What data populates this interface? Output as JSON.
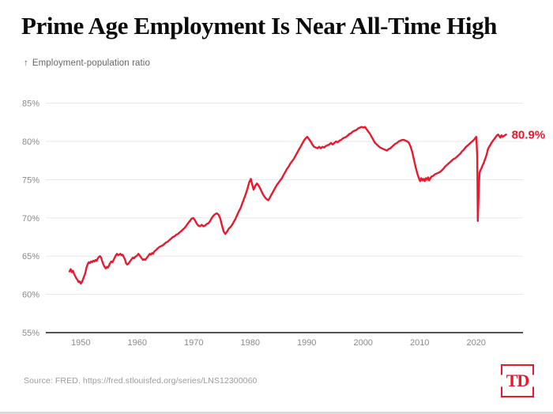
{
  "chart_data": {
    "type": "line",
    "title": "Prime Age Employment Is Near All-Time High",
    "ylabel": "Employment-population ratio",
    "ylabel_arrow": "↑",
    "end_label": "80.9%",
    "x_ticks": [
      1950,
      1960,
      1970,
      1980,
      1990,
      2000,
      2010,
      2020
    ],
    "y_ticks": [
      55,
      60,
      65,
      70,
      75,
      80,
      85
    ],
    "y_tick_suffix": "%",
    "xlim": [
      1943.8,
      2028.3
    ],
    "ylim": [
      55,
      85
    ],
    "grid": "horizontal",
    "legend": "none",
    "line_color": "#e8192d",
    "axis_color": "#3c3c3c",
    "grid_color": "#e7e7e7",
    "tick_label_color": "#8a8a8a",
    "series": [
      {
        "name": "Employment-population ratio",
        "points": [
          [
            1948,
            63
          ],
          [
            1948.2,
            63.3
          ],
          [
            1948.4,
            62.9
          ],
          [
            1948.6,
            63.1
          ],
          [
            1948.8,
            62.7
          ],
          [
            1949,
            62.4
          ],
          [
            1949.2,
            62.1
          ],
          [
            1949.4,
            61.9
          ],
          [
            1949.6,
            61.6
          ],
          [
            1949.8,
            61.7
          ],
          [
            1950,
            61.4
          ],
          [
            1950.2,
            61.6
          ],
          [
            1950.4,
            62
          ],
          [
            1950.6,
            62.4
          ],
          [
            1950.8,
            62.8
          ],
          [
            1951,
            63.5
          ],
          [
            1951.2,
            63.9
          ],
          [
            1951.4,
            64.2
          ],
          [
            1951.6,
            64.1
          ],
          [
            1951.8,
            64.3
          ],
          [
            1952,
            64.2
          ],
          [
            1952.2,
            64.4
          ],
          [
            1952.4,
            64.3
          ],
          [
            1952.6,
            64.5
          ],
          [
            1952.8,
            64.4
          ],
          [
            1953,
            64.7
          ],
          [
            1953.2,
            64.9
          ],
          [
            1953.4,
            65
          ],
          [
            1953.6,
            64.8
          ],
          [
            1953.8,
            64.3
          ],
          [
            1954,
            63.9
          ],
          [
            1954.2,
            63.6
          ],
          [
            1954.4,
            63.4
          ],
          [
            1954.6,
            63.6
          ],
          [
            1954.8,
            63.5
          ],
          [
            1955,
            63.8
          ],
          [
            1955.2,
            64.1
          ],
          [
            1955.4,
            64.3
          ],
          [
            1955.6,
            64.2
          ],
          [
            1955.8,
            64.5
          ],
          [
            1956,
            64.8
          ],
          [
            1956.2,
            65.1
          ],
          [
            1956.4,
            65.3
          ],
          [
            1956.6,
            65.1
          ],
          [
            1956.8,
            65.2
          ],
          [
            1957,
            65.3
          ],
          [
            1957.2,
            65.1
          ],
          [
            1957.4,
            65.2
          ],
          [
            1957.6,
            64.9
          ],
          [
            1957.8,
            64.6
          ],
          [
            1958,
            64.1
          ],
          [
            1958.2,
            63.9
          ],
          [
            1958.4,
            64
          ],
          [
            1958.6,
            64.2
          ],
          [
            1958.8,
            64.4
          ],
          [
            1959,
            64.6
          ],
          [
            1959.2,
            64.8
          ],
          [
            1959.4,
            64.7
          ],
          [
            1959.6,
            64.9
          ],
          [
            1959.8,
            65
          ],
          [
            1960,
            65.1
          ],
          [
            1960.2,
            65.3
          ],
          [
            1960.4,
            65.1
          ],
          [
            1960.6,
            64.9
          ],
          [
            1960.8,
            64.7
          ],
          [
            1961,
            64.5
          ],
          [
            1961.2,
            64.6
          ],
          [
            1961.4,
            64.5
          ],
          [
            1961.6,
            64.7
          ],
          [
            1961.8,
            64.9
          ],
          [
            1962,
            65.1
          ],
          [
            1962.2,
            65.3
          ],
          [
            1962.4,
            65.2
          ],
          [
            1962.6,
            65.4
          ],
          [
            1962.8,
            65.3
          ],
          [
            1963,
            65.6
          ],
          [
            1963.3,
            65.8
          ],
          [
            1963.6,
            66
          ],
          [
            1963.9,
            66.2
          ],
          [
            1964.2,
            66.3
          ],
          [
            1964.5,
            66.4
          ],
          [
            1964.8,
            66.6
          ],
          [
            1965.1,
            66.8
          ],
          [
            1965.4,
            66.9
          ],
          [
            1965.7,
            67.1
          ],
          [
            1966,
            67.3
          ],
          [
            1966.3,
            67.5
          ],
          [
            1966.6,
            67.6
          ],
          [
            1966.9,
            67.8
          ],
          [
            1967.2,
            67.9
          ],
          [
            1967.5,
            68.1
          ],
          [
            1967.8,
            68.3
          ],
          [
            1968.1,
            68.5
          ],
          [
            1968.4,
            68.7
          ],
          [
            1968.7,
            69
          ],
          [
            1969,
            69.3
          ],
          [
            1969.3,
            69.6
          ],
          [
            1969.6,
            69.9
          ],
          [
            1969.9,
            70
          ],
          [
            1970.2,
            69.7
          ],
          [
            1970.5,
            69.3
          ],
          [
            1970.8,
            69
          ],
          [
            1971.1,
            68.9
          ],
          [
            1971.4,
            69.1
          ],
          [
            1971.7,
            68.9
          ],
          [
            1972,
            69
          ],
          [
            1972.3,
            69.2
          ],
          [
            1972.6,
            69.3
          ],
          [
            1972.9,
            69.6
          ],
          [
            1973.2,
            70
          ],
          [
            1973.5,
            70.3
          ],
          [
            1973.8,
            70.5
          ],
          [
            1974.1,
            70.6
          ],
          [
            1974.4,
            70.4
          ],
          [
            1974.7,
            69.9
          ],
          [
            1975,
            69
          ],
          [
            1975.3,
            68.2
          ],
          [
            1975.6,
            67.9
          ],
          [
            1975.9,
            68.2
          ],
          [
            1976.2,
            68.6
          ],
          [
            1976.5,
            68.8
          ],
          [
            1976.8,
            69.1
          ],
          [
            1977.1,
            69.5
          ],
          [
            1977.4,
            69.9
          ],
          [
            1977.7,
            70.4
          ],
          [
            1978,
            70.9
          ],
          [
            1978.3,
            71.3
          ],
          [
            1978.6,
            71.9
          ],
          [
            1978.9,
            72.5
          ],
          [
            1979.2,
            73.1
          ],
          [
            1979.5,
            73.8
          ],
          [
            1979.8,
            74.6
          ],
          [
            1980.1,
            75.1
          ],
          [
            1980.4,
            74.2
          ],
          [
            1980.6,
            73.7
          ],
          [
            1980.9,
            74.2
          ],
          [
            1981.2,
            74.5
          ],
          [
            1981.5,
            74.2
          ],
          [
            1981.8,
            73.8
          ],
          [
            1982.1,
            73.3
          ],
          [
            1982.4,
            72.9
          ],
          [
            1982.7,
            72.6
          ],
          [
            1983,
            72.4
          ],
          [
            1983.2,
            72.3
          ],
          [
            1983.5,
            72.7
          ],
          [
            1983.8,
            73.1
          ],
          [
            1984.1,
            73.5
          ],
          [
            1984.4,
            73.9
          ],
          [
            1984.7,
            74.3
          ],
          [
            1985,
            74.6
          ],
          [
            1985.3,
            74.9
          ],
          [
            1985.6,
            75.2
          ],
          [
            1985.9,
            75.6
          ],
          [
            1986.2,
            76
          ],
          [
            1986.5,
            76.4
          ],
          [
            1986.8,
            76.7
          ],
          [
            1987.1,
            77.1
          ],
          [
            1987.4,
            77.4
          ],
          [
            1987.7,
            77.7
          ],
          [
            1988,
            78.1
          ],
          [
            1988.3,
            78.5
          ],
          [
            1988.6,
            78.9
          ],
          [
            1988.9,
            79.3
          ],
          [
            1989.2,
            79.7
          ],
          [
            1989.5,
            80.1
          ],
          [
            1989.8,
            80.4
          ],
          [
            1990.1,
            80.6
          ],
          [
            1990.4,
            80.3
          ],
          [
            1990.7,
            80
          ],
          [
            1991,
            79.6
          ],
          [
            1991.3,
            79.3
          ],
          [
            1991.6,
            79.2
          ],
          [
            1991.9,
            79.1
          ],
          [
            1992.2,
            79.3
          ],
          [
            1992.5,
            79.1
          ],
          [
            1992.8,
            79.3
          ],
          [
            1993.1,
            79.2
          ],
          [
            1993.4,
            79.4
          ],
          [
            1993.7,
            79.5
          ],
          [
            1994,
            79.6
          ],
          [
            1994.3,
            79.8
          ],
          [
            1994.6,
            79.6
          ],
          [
            1994.9,
            79.8
          ],
          [
            1995.2,
            80
          ],
          [
            1995.5,
            79.9
          ],
          [
            1995.8,
            80.1
          ],
          [
            1996.1,
            80.2
          ],
          [
            1996.4,
            80.4
          ],
          [
            1996.7,
            80.5
          ],
          [
            1997,
            80.6
          ],
          [
            1997.3,
            80.8
          ],
          [
            1997.6,
            81
          ],
          [
            1997.9,
            81.1
          ],
          [
            1998.2,
            81.3
          ],
          [
            1998.5,
            81.4
          ],
          [
            1998.8,
            81.5
          ],
          [
            1999.1,
            81.7
          ],
          [
            1999.4,
            81.8
          ],
          [
            1999.7,
            81.9
          ],
          [
            2000,
            81.8
          ],
          [
            2000.3,
            81.9
          ],
          [
            2000.6,
            81.6
          ],
          [
            2000.9,
            81.3
          ],
          [
            2001.2,
            81
          ],
          [
            2001.5,
            80.6
          ],
          [
            2001.8,
            80.2
          ],
          [
            2002.1,
            79.8
          ],
          [
            2002.4,
            79.6
          ],
          [
            2002.7,
            79.4
          ],
          [
            2003,
            79.2
          ],
          [
            2003.3,
            79.1
          ],
          [
            2003.6,
            79
          ],
          [
            2003.9,
            78.9
          ],
          [
            2004.2,
            78.8
          ],
          [
            2004.5,
            79
          ],
          [
            2004.8,
            79.1
          ],
          [
            2005.1,
            79.3
          ],
          [
            2005.4,
            79.5
          ],
          [
            2005.7,
            79.7
          ],
          [
            2006,
            79.8
          ],
          [
            2006.3,
            80
          ],
          [
            2006.6,
            80.1
          ],
          [
            2006.9,
            80.2
          ],
          [
            2007.2,
            80.2
          ],
          [
            2007.5,
            80.1
          ],
          [
            2007.8,
            80
          ],
          [
            2008.1,
            79.8
          ],
          [
            2008.4,
            79.3
          ],
          [
            2008.7,
            78.6
          ],
          [
            2009,
            77.6
          ],
          [
            2009.3,
            76.6
          ],
          [
            2009.6,
            75.8
          ],
          [
            2009.9,
            75.1
          ],
          [
            2010.1,
            74.8
          ],
          [
            2010.3,
            75.2
          ],
          [
            2010.5,
            74.9
          ],
          [
            2010.7,
            75.1
          ],
          [
            2010.9,
            74.8
          ],
          [
            2011.1,
            75.2
          ],
          [
            2011.3,
            75
          ],
          [
            2011.5,
            75.3
          ],
          [
            2011.7,
            74.9
          ],
          [
            2011.9,
            75.2
          ],
          [
            2012.1,
            75.4
          ],
          [
            2012.4,
            75.5
          ],
          [
            2012.7,
            75.7
          ],
          [
            2013,
            75.8
          ],
          [
            2013.3,
            75.9
          ],
          [
            2013.6,
            76
          ],
          [
            2013.9,
            76.2
          ],
          [
            2014.2,
            76.4
          ],
          [
            2014.5,
            76.7
          ],
          [
            2014.8,
            76.9
          ],
          [
            2015.1,
            77.1
          ],
          [
            2015.4,
            77.3
          ],
          [
            2015.7,
            77.5
          ],
          [
            2016,
            77.7
          ],
          [
            2016.3,
            77.8
          ],
          [
            2016.6,
            78
          ],
          [
            2016.9,
            78.2
          ],
          [
            2017.2,
            78.4
          ],
          [
            2017.5,
            78.7
          ],
          [
            2017.8,
            78.9
          ],
          [
            2018.1,
            79.2
          ],
          [
            2018.4,
            79.4
          ],
          [
            2018.7,
            79.6
          ],
          [
            2019,
            79.8
          ],
          [
            2019.3,
            80
          ],
          [
            2019.6,
            80.2
          ],
          [
            2019.9,
            80.5
          ],
          [
            2020.05,
            80.6
          ],
          [
            2020.2,
            78
          ],
          [
            2020.3,
            69.6
          ],
          [
            2020.4,
            71.8
          ],
          [
            2020.5,
            74.2
          ],
          [
            2020.6,
            75.9
          ],
          [
            2020.75,
            76.2
          ],
          [
            2020.9,
            76.4
          ],
          [
            2021.1,
            76.8
          ],
          [
            2021.3,
            77.1
          ],
          [
            2021.5,
            77.5
          ],
          [
            2021.7,
            77.9
          ],
          [
            2021.9,
            78.4
          ],
          [
            2022.1,
            79
          ],
          [
            2022.3,
            79.3
          ],
          [
            2022.5,
            79.5
          ],
          [
            2022.7,
            79.8
          ],
          [
            2022.9,
            80
          ],
          [
            2023.1,
            80.2
          ],
          [
            2023.3,
            80.4
          ],
          [
            2023.5,
            80.6
          ],
          [
            2023.7,
            80.8
          ],
          [
            2023.9,
            80.9
          ],
          [
            2024.1,
            80.7
          ],
          [
            2024.3,
            80.5
          ],
          [
            2024.5,
            80.8
          ],
          [
            2024.7,
            80.6
          ],
          [
            2024.9,
            80.7
          ],
          [
            2025.1,
            80.8
          ],
          [
            2025.3,
            80.9
          ]
        ]
      }
    ]
  },
  "footer": {
    "source": "Source: FRED. https://fred.stlouisfed.org/series/LNS12300060",
    "logo_text": "TD"
  }
}
